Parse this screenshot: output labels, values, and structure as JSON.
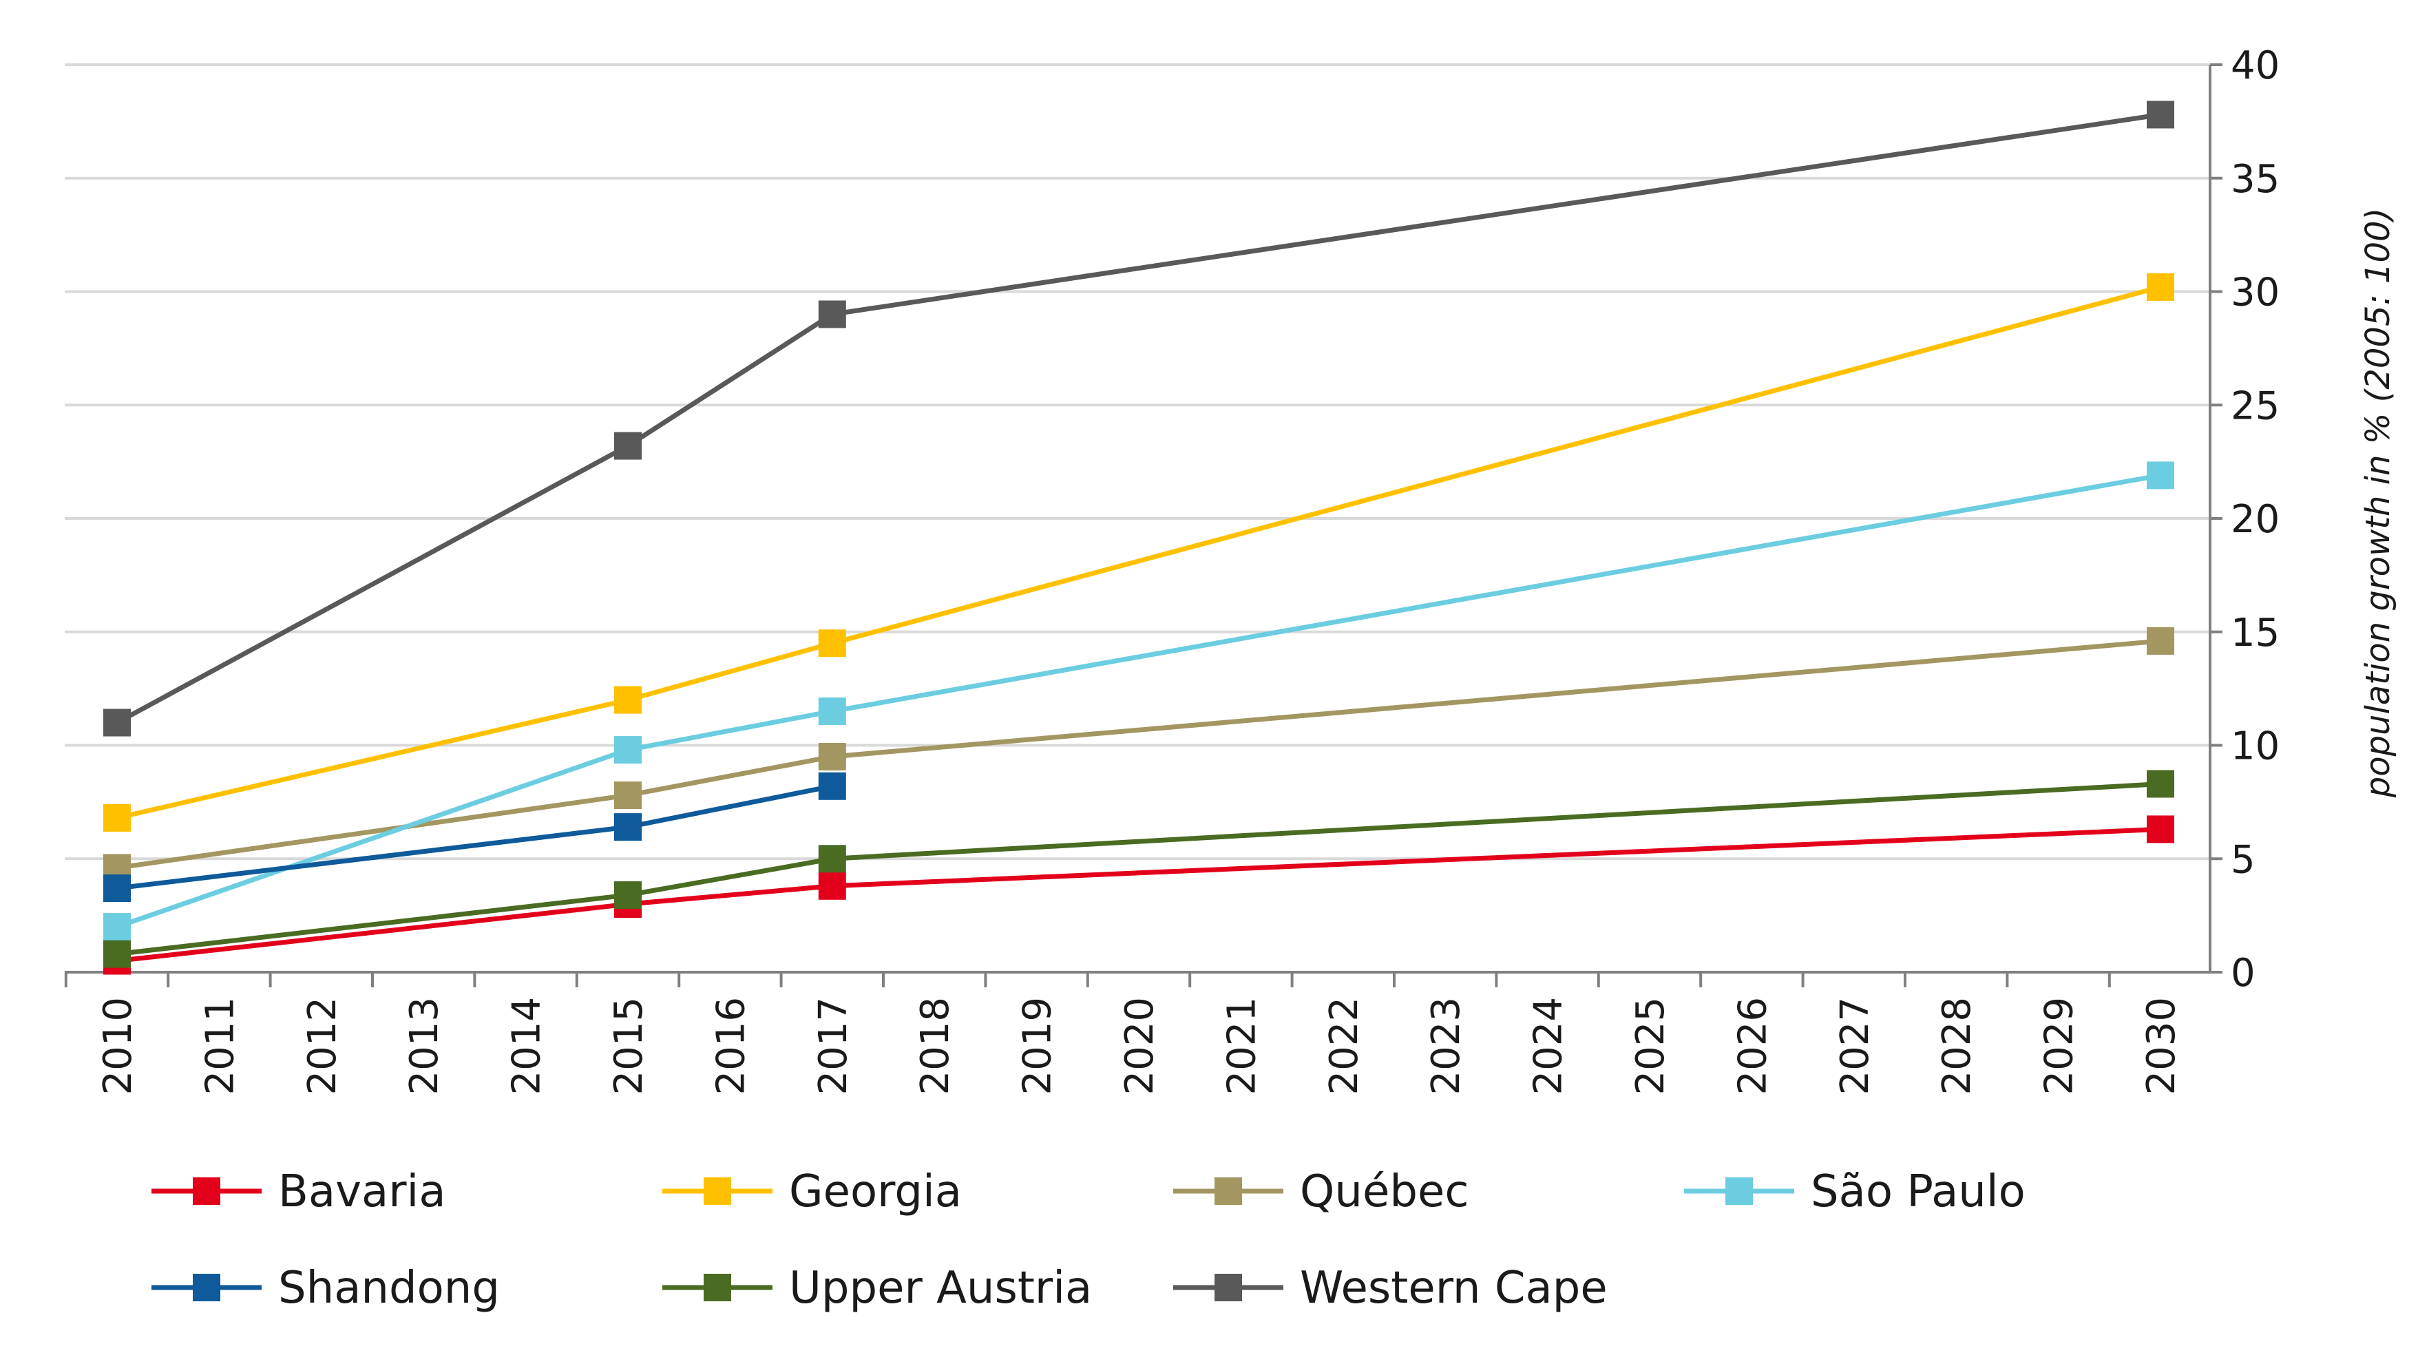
{
  "chart_data": {
    "type": "line",
    "title": "",
    "xlabel": "",
    "ylabel": "population growth  in % (2005: 100)",
    "categories": [
      "2010",
      "2011",
      "2012",
      "2013",
      "2014",
      "2015",
      "2016",
      "2017",
      "2018",
      "2019",
      "2020",
      "2021",
      "2022",
      "2023",
      "2024",
      "2025",
      "2026",
      "2027",
      "2028",
      "2029",
      "2030"
    ],
    "ylim": [
      0,
      40
    ],
    "yticks": [
      "0",
      "5",
      "10",
      "15",
      "20",
      "25",
      "30",
      "35",
      "40"
    ],
    "grid": true,
    "legend_position": "bottom",
    "series": [
      {
        "name": "Bavaria",
        "color": "#e3001b",
        "x": [
          "2010",
          "2015",
          "2017",
          "2030"
        ],
        "values": [
          0.5,
          3.0,
          3.8,
          6.3
        ]
      },
      {
        "name": "Georgia",
        "color": "#ffc000",
        "x": [
          "2010",
          "2015",
          "2017",
          "2030"
        ],
        "values": [
          6.8,
          12.0,
          14.5,
          30.2
        ]
      },
      {
        "name": "Québec",
        "color": "#a39661",
        "x": [
          "2010",
          "2015",
          "2017",
          "2030"
        ],
        "values": [
          4.6,
          7.8,
          9.5,
          14.6
        ]
      },
      {
        "name": "São Paulo",
        "color": "#6ccde0",
        "x": [
          "2010",
          "2015",
          "2017",
          "2030"
        ],
        "values": [
          2.0,
          9.8,
          11.5,
          21.9
        ]
      },
      {
        "name": "Shandong",
        "color": "#0e5a9a",
        "x": [
          "2010",
          "2015",
          "2017"
        ],
        "values": [
          3.7,
          6.4,
          8.2
        ]
      },
      {
        "name": "Upper Austria",
        "color": "#4a6b22",
        "x": [
          "2010",
          "2015",
          "2017",
          "2030"
        ],
        "values": [
          0.8,
          3.4,
          5.0,
          8.3
        ]
      },
      {
        "name": "Western Cape",
        "color": "#595959",
        "x": [
          "2010",
          "2015",
          "2017",
          "2030"
        ],
        "values": [
          11.0,
          23.2,
          29.0,
          37.8
        ]
      }
    ]
  }
}
